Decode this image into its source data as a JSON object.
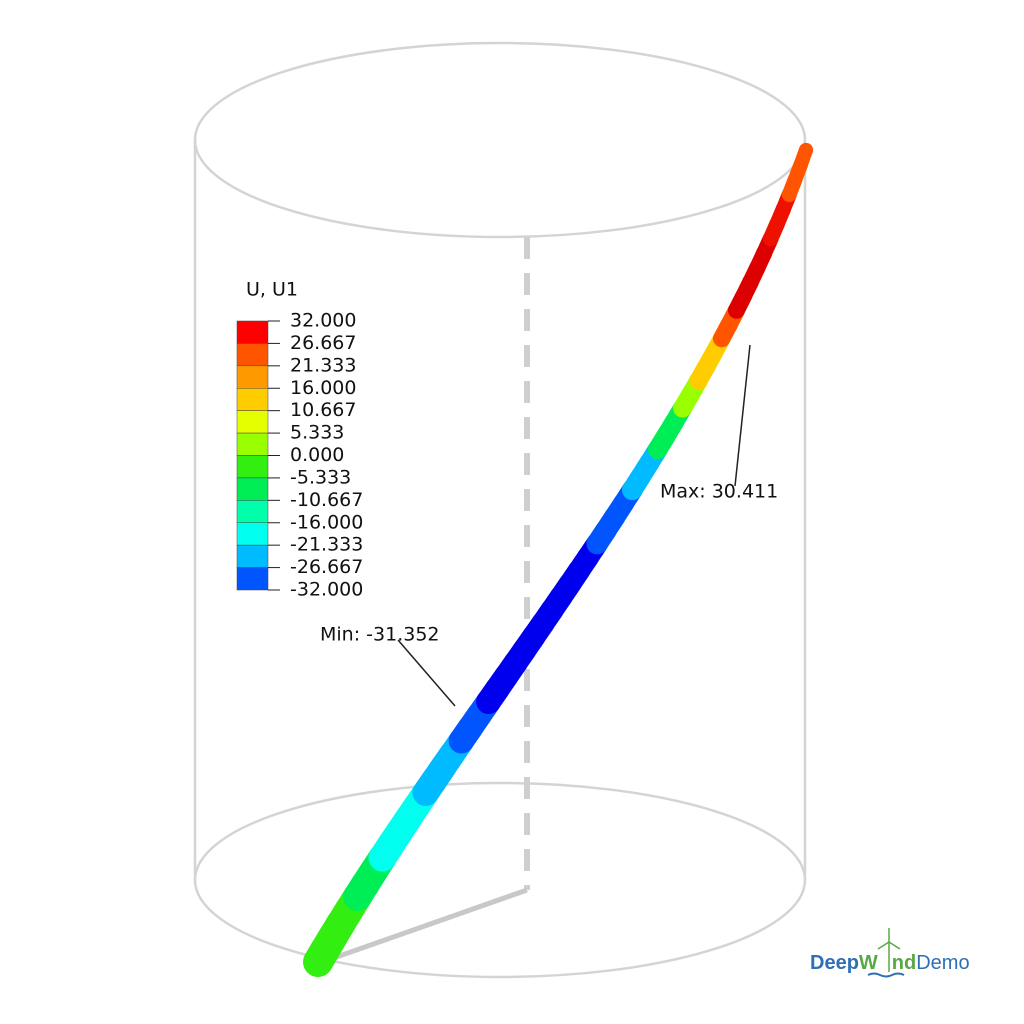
{
  "legend": {
    "title": "U, U1",
    "levels": [
      "32.000",
      "26.667",
      "21.333",
      "16.000",
      "10.667",
      "5.333",
      "0.000",
      "-5.333",
      "-10.667",
      "-16.000",
      "-21.333",
      "-26.667",
      "-32.000"
    ]
  },
  "annotations": {
    "max": "Max: 30.411",
    "min": "Min: -31.352"
  },
  "logo": {
    "parts": [
      "Deep",
      "W",
      "nd",
      "Demo"
    ]
  }
}
